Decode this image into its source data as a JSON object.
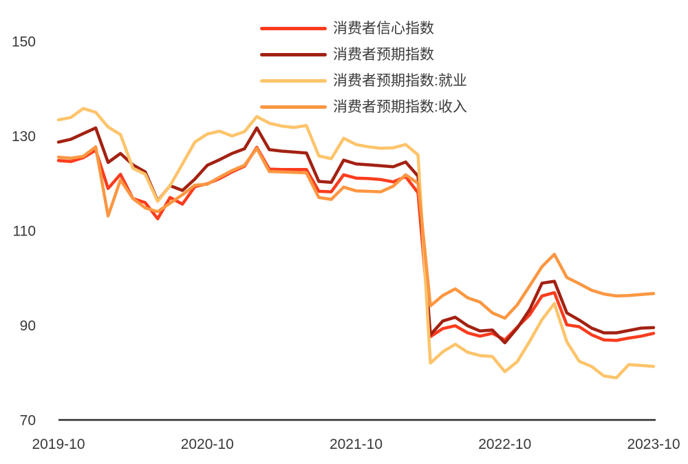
{
  "chart_data": {
    "type": "line",
    "title": "",
    "frequency": "monthly",
    "x_start": "2019-10",
    "x_end": "2023-10",
    "x_tick_labels": [
      "2019-10",
      "2020-10",
      "2021-10",
      "2022-10",
      "2023-10"
    ],
    "x_tick_positions_months": [
      0,
      12,
      24,
      36,
      48
    ],
    "y_ticks": [
      70,
      90,
      110,
      130,
      150
    ],
    "ylim": [
      70,
      158
    ],
    "grid": false,
    "legend_position": "top-center",
    "axis_color": "#2b2b2b",
    "text_color": "#383838",
    "series": [
      {
        "name": "消费者信心指数",
        "dom_name": "line-consumer-confidence-index",
        "color": "#FA3C1E",
        "values": [
          124.8,
          124.6,
          125.4,
          127.0,
          118.9,
          121.9,
          116.8,
          115.9,
          112.5,
          117.0,
          115.6,
          119.3,
          119.9,
          121.0,
          122.4,
          123.6,
          127.6,
          123.0,
          122.9,
          122.9,
          122.9,
          118.3,
          118.2,
          121.8,
          121.1,
          121.0,
          120.8,
          120.3,
          121.4,
          118.0,
          87.6,
          89.3,
          89.9,
          88.4,
          87.7,
          88.3,
          86.9,
          89.6,
          92.2,
          96.2,
          96.9,
          90.1,
          89.7,
          88.0,
          86.9,
          86.8,
          87.3,
          87.7,
          88.3
        ]
      },
      {
        "name": "消费者预期指数",
        "dom_name": "line-consumer-expectation-index",
        "color": "#A32112",
        "values": [
          128.7,
          129.3,
          130.5,
          131.7,
          124.4,
          126.3,
          123.9,
          122.4,
          116.3,
          119.5,
          118.5,
          120.9,
          123.8,
          125.0,
          126.3,
          127.3,
          131.7,
          127.1,
          126.8,
          126.6,
          126.4,
          120.4,
          120.2,
          124.9,
          124.1,
          123.9,
          123.7,
          123.5,
          124.5,
          121.5,
          88.0,
          90.9,
          91.7,
          89.9,
          88.8,
          89.0,
          86.3,
          89.4,
          93.3,
          98.9,
          99.3,
          92.6,
          91.1,
          89.4,
          88.4,
          88.4,
          88.9,
          89.4,
          89.5
        ]
      },
      {
        "name": "消费者预期指数:就业",
        "dom_name": "line-expectation-employment",
        "color": "#FDC46B",
        "values": [
          133.4,
          133.9,
          135.8,
          135.0,
          131.9,
          130.3,
          123.2,
          121.9,
          116.2,
          119.5,
          124.1,
          128.7,
          130.4,
          131.0,
          130.0,
          130.9,
          134.1,
          132.7,
          132.1,
          131.8,
          132.2,
          125.8,
          125.2,
          129.5,
          128.2,
          127.7,
          127.4,
          127.5,
          128.2,
          126.0,
          82.0,
          84.4,
          86.0,
          84.3,
          83.6,
          83.4,
          80.2,
          82.3,
          86.6,
          91.2,
          94.6,
          86.5,
          82.4,
          81.3,
          79.3,
          78.9,
          81.7,
          81.5,
          81.3
        ]
      },
      {
        "name": "消费者预期指数:收入",
        "dom_name": "line-expectation-income",
        "color": "#FB9742",
        "values": [
          125.5,
          125.3,
          125.7,
          127.7,
          113.1,
          120.7,
          116.8,
          114.8,
          114.0,
          115.8,
          117.6,
          119.6,
          119.8,
          121.3,
          122.7,
          123.8,
          127.4,
          122.5,
          122.4,
          122.3,
          122.2,
          117.0,
          116.6,
          119.2,
          118.4,
          118.3,
          118.2,
          119.4,
          121.8,
          120.0,
          94.1,
          96.3,
          97.7,
          95.8,
          94.9,
          92.6,
          91.5,
          94.3,
          98.3,
          102.4,
          105.0,
          100.1,
          98.8,
          97.4,
          96.6,
          96.2,
          96.3,
          96.5,
          96.7
        ]
      }
    ]
  }
}
